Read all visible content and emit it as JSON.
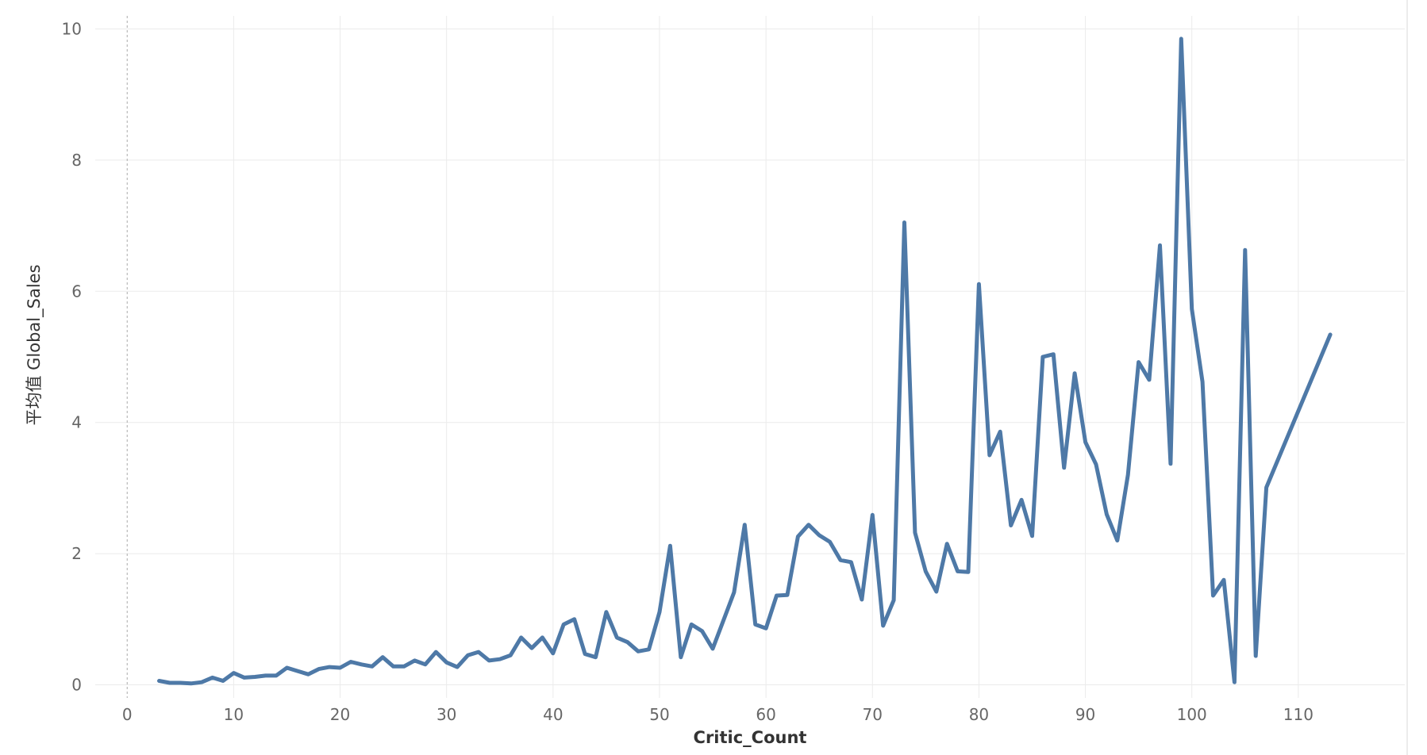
{
  "chart_data": {
    "type": "line",
    "title": "",
    "xlabel": "Critic_Count",
    "ylabel": "平均值 Global_Sales",
    "xlim": [
      -3,
      120
    ],
    "ylim": [
      -0.2,
      10.2
    ],
    "x_ticks": [
      0,
      10,
      20,
      30,
      40,
      50,
      60,
      70,
      80,
      90,
      100,
      110
    ],
    "y_ticks": [
      0,
      2,
      4,
      6,
      8,
      10
    ],
    "grid": true,
    "legend": "none",
    "colors": {
      "line": "#4e79a7",
      "grid": "#ebebeb",
      "zero_line": "#aaaaaa"
    },
    "series": [
      {
        "x": [
          3,
          4,
          5,
          6,
          7,
          8,
          9,
          10,
          11,
          12,
          13,
          14,
          15,
          16,
          17,
          18,
          19,
          20,
          21,
          22,
          23,
          24,
          25,
          26,
          27,
          28,
          29,
          30,
          31,
          32,
          33,
          34,
          35,
          36,
          37,
          38,
          39,
          40,
          41,
          42,
          43,
          44,
          45,
          46,
          47,
          48,
          49,
          50,
          51,
          52,
          53,
          54,
          55,
          56,
          57,
          58,
          59,
          60,
          61,
          62,
          63,
          64,
          65,
          66,
          67,
          68,
          69,
          70,
          71,
          72,
          73,
          74,
          75,
          76,
          77,
          78,
          79,
          80,
          81,
          82,
          83,
          84,
          85,
          86,
          87,
          88,
          89,
          90,
          91,
          92,
          93,
          94,
          95,
          96,
          97,
          98,
          99,
          100,
          101,
          102,
          103,
          104,
          105,
          106,
          107,
          113
        ],
        "y": [
          0.06,
          0.03,
          0.03,
          0.02,
          0.04,
          0.11,
          0.06,
          0.18,
          0.11,
          0.12,
          0.14,
          0.14,
          0.26,
          0.21,
          0.16,
          0.24,
          0.27,
          0.26,
          0.35,
          0.31,
          0.28,
          0.42,
          0.28,
          0.28,
          0.37,
          0.31,
          0.5,
          0.34,
          0.27,
          0.45,
          0.5,
          0.37,
          0.39,
          0.45,
          0.72,
          0.56,
          0.72,
          0.48,
          0.92,
          1.0,
          0.47,
          0.42,
          1.11,
          0.72,
          0.65,
          0.51,
          0.54,
          1.11,
          2.12,
          0.42,
          0.92,
          0.82,
          0.55,
          0.98,
          1.41,
          2.44,
          0.92,
          0.86,
          1.36,
          1.37,
          2.26,
          2.44,
          2.28,
          2.18,
          1.9,
          1.87,
          1.3,
          2.59,
          0.9,
          1.29,
          7.05,
          2.32,
          1.73,
          1.42,
          2.15,
          1.73,
          1.72,
          6.11,
          3.5,
          3.86,
          2.43,
          2.82,
          2.27,
          5.0,
          5.04,
          3.31,
          4.75,
          3.7,
          3.36,
          2.6,
          2.2,
          3.2,
          4.92,
          4.65,
          6.7,
          3.37,
          9.85,
          5.73,
          4.62,
          1.36,
          1.6,
          0.04,
          6.63,
          0.44,
          3.01,
          5.34
        ]
      }
    ]
  }
}
